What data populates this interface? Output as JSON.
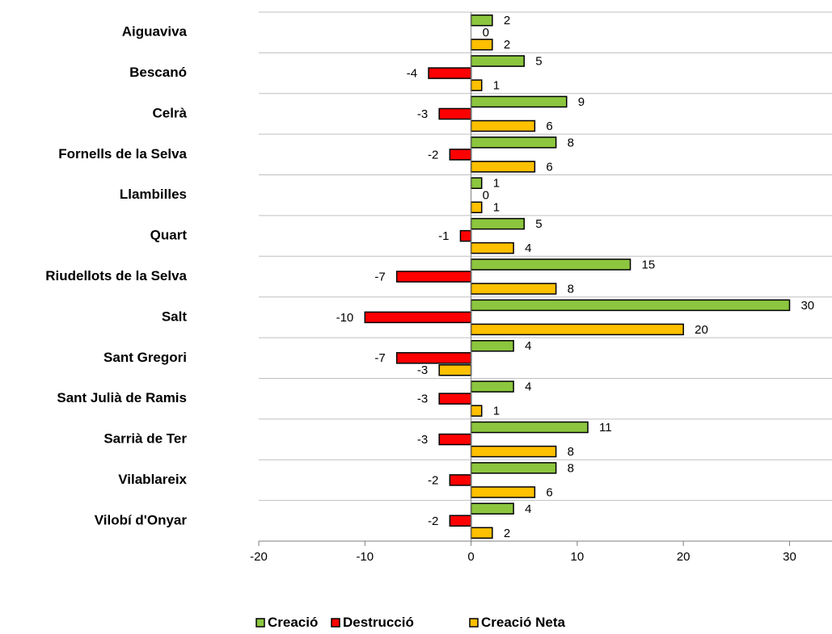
{
  "chart_data": {
    "type": "bar",
    "orientation": "horizontal",
    "categories": [
      "Aiguaviva",
      "Bescanó",
      "Celrà",
      "Fornells de la Selva",
      "Llambilles",
      "Quart",
      "Riudellots de la Selva",
      "Salt",
      "Sant Gregori",
      "Sant Julià de Ramis",
      "Sarrià de Ter",
      "Vilablareix",
      "Vilobí d'Onyar"
    ],
    "series": [
      {
        "name": "Creació",
        "color": "#8cc63f",
        "values": [
          2,
          5,
          9,
          8,
          1,
          5,
          15,
          30,
          4,
          4,
          11,
          8,
          4
        ]
      },
      {
        "name": "Destrucció",
        "color": "#ff0000",
        "values": [
          0,
          -4,
          -3,
          -2,
          0,
          -1,
          -7,
          -10,
          -7,
          -3,
          -3,
          -2,
          -2
        ]
      },
      {
        "name": "Creació Neta",
        "color": "#ffc000",
        "values": [
          2,
          1,
          6,
          6,
          1,
          4,
          8,
          20,
          -3,
          1,
          8,
          6,
          2
        ]
      }
    ],
    "xlim": [
      -20,
      34
    ],
    "xticks": [
      -20,
      -10,
      0,
      10,
      20,
      30
    ],
    "title": "",
    "xlabel": "",
    "ylabel": "",
    "grid": "horizontal category separators",
    "legend": "bottom-center"
  }
}
